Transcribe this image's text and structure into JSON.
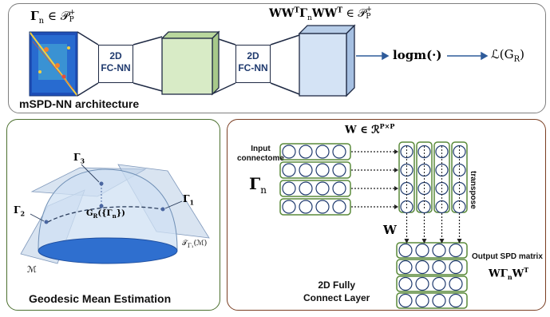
{
  "top": {
    "gamma_label": "Γ",
    "gamma_sub": "n",
    "gamma_rest": " ∈ 𝒫",
    "gamma_sup": "+",
    "gamma_sub2": "P",
    "ww_label": "WW",
    "ww_sup": "T",
    "ww_gamma": "Γ",
    "ww_sub": "n",
    "ww_rest": "WW",
    "ww_sup2": "T",
    "ww_in": " ∈ 𝒫",
    "ww_sup3": "+",
    "ww_sub3": "P",
    "box1_line1": "2D",
    "box1_line2": "FC-NN",
    "box2_line1": "2D",
    "box2_line2": "FC-NN",
    "logm": "logm(·)",
    "loss": "ℒ(G",
    "loss_sub": "R",
    "loss_end": ")",
    "caption": "mSPD-NN architecture"
  },
  "geodesic": {
    "caption": "Geodesic Mean Estimation",
    "g3": "Γ",
    "g3_sub": "3",
    "g2": "Γ",
    "g2_sub": "2",
    "g1": "Γ",
    "g1_sub": "1",
    "mean": "G",
    "mean_sub": "R",
    "mean_rest": "({Γ",
    "mean_sub2": "n",
    "mean_end": "})",
    "manifold": "ℳ",
    "tangent": "𝒯",
    "tangent_sub": "Γ₁",
    "tangent_rest": "(ℳ)"
  },
  "fc": {
    "w_def": "W ∈ ℛ",
    "w_def_sup": "P×P",
    "input_line1": "Input",
    "input_line2": "connectome",
    "gamma": "Γ",
    "gamma_sub": "n",
    "transpose": "transpose",
    "w": "W",
    "output_label": "Output SPD matrix",
    "out_formula": "WΓ",
    "out_sub": "n",
    "out_rest": "W",
    "out_sup": "T",
    "caption_line1": "2D Fully",
    "caption_line2": "Connect Layer"
  },
  "colors": {
    "cube_green": "#d8ebc6",
    "cube_blue": "#d4e3f5",
    "grid_border": "#5a8a3a",
    "circle_stroke": "#1f3a6e",
    "arrow": "#2e5b9a",
    "manifold_fill": "#cfe0f3",
    "manifold_base": "#2f6fcf"
  }
}
